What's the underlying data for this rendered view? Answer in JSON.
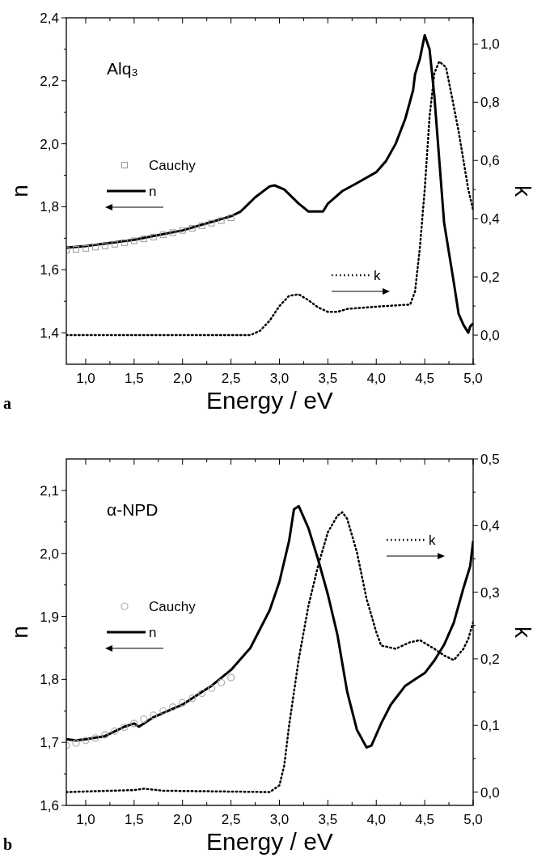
{
  "chart_data": [
    {
      "type": "line",
      "annotations": [
        "Alq₃",
        "a"
      ],
      "xlabel": "Energy / eV",
      "ylabel": "n",
      "y2label": "k",
      "legend": "left",
      "xlim": [
        0.8,
        5.0
      ],
      "xticks": [
        {
          "value": 1.0,
          "label": "1,0"
        },
        {
          "value": 1.5,
          "label": "1,5"
        },
        {
          "value": 2.0,
          "label": "2,0"
        },
        {
          "value": 2.5,
          "label": "2,5"
        },
        {
          "value": 3.0,
          "label": "3,0"
        },
        {
          "value": 3.5,
          "label": "3,5"
        },
        {
          "value": 4.0,
          "label": "4,0"
        },
        {
          "value": 4.5,
          "label": "4,5"
        },
        {
          "value": 5.0,
          "label": "5,0"
        }
      ],
      "ylim": [
        1.3,
        2.4
      ],
      "yticks": [
        {
          "value": 1.4,
          "label": "1,4"
        },
        {
          "value": 1.6,
          "label": "1,6"
        },
        {
          "value": 1.8,
          "label": "1,8"
        },
        {
          "value": 2.0,
          "label": "2,0"
        },
        {
          "value": 2.2,
          "label": "2,2"
        },
        {
          "value": 2.4,
          "label": "2,4"
        }
      ],
      "y2lim": [
        -0.1,
        1.09
      ],
      "y2ticks": [
        {
          "value": 0.0,
          "label": "0,0"
        },
        {
          "value": 0.2,
          "label": "0,2"
        },
        {
          "value": 0.4,
          "label": "0,4"
        },
        {
          "value": 0.6,
          "label": "0,6"
        },
        {
          "value": 0.8,
          "label": "0,8"
        },
        {
          "value": 1.0,
          "label": "1,0"
        }
      ],
      "series": [
        {
          "name": "Cauchy",
          "type": "scatter",
          "marker": "square",
          "color": "#999999",
          "x": [
            0.8,
            0.9,
            1.0,
            1.1,
            1.2,
            1.3,
            1.4,
            1.5,
            1.6,
            1.7,
            1.8,
            1.9,
            2.0,
            2.1,
            2.2,
            2.3,
            2.4,
            2.5
          ],
          "values": [
            1.662,
            1.665,
            1.668,
            1.672,
            1.676,
            1.681,
            1.686,
            1.692,
            1.698,
            1.704,
            1.711,
            1.718,
            1.725,
            1.732,
            1.74,
            1.748,
            1.756,
            1.765
          ]
        },
        {
          "name": "n",
          "type": "line",
          "line_style": "solid",
          "color": "#000000",
          "x": [
            0.8,
            1.0,
            1.5,
            2.0,
            2.5,
            2.6,
            2.75,
            2.9,
            2.95,
            3.05,
            3.2,
            3.3,
            3.45,
            3.5,
            3.65,
            3.8,
            4.0,
            4.1,
            4.2,
            4.3,
            4.38,
            4.4,
            4.45,
            4.5,
            4.55,
            4.6,
            4.65,
            4.7,
            4.8,
            4.85,
            4.9,
            4.95,
            4.97,
            5.0
          ],
          "values": [
            1.67,
            1.675,
            1.695,
            1.725,
            1.77,
            1.785,
            1.83,
            1.865,
            1.868,
            1.855,
            1.81,
            1.785,
            1.785,
            1.81,
            1.85,
            1.875,
            1.91,
            1.945,
            2.0,
            2.08,
            2.17,
            2.22,
            2.27,
            2.345,
            2.3,
            2.15,
            1.95,
            1.75,
            1.56,
            1.46,
            1.425,
            1.4,
            1.42,
            1.43
          ]
        },
        {
          "name": "k",
          "type": "line",
          "line_style": "dotted",
          "axis": "y2",
          "color": "#000000",
          "x": [
            0.8,
            2.7,
            2.8,
            2.9,
            3.0,
            3.1,
            3.2,
            3.3,
            3.4,
            3.5,
            3.6,
            3.7,
            3.9,
            4.1,
            4.35,
            4.4,
            4.45,
            4.5,
            4.55,
            4.6,
            4.65,
            4.72,
            4.78,
            4.85,
            4.95,
            5.0
          ],
          "values": [
            0.0,
            0.0,
            0.015,
            0.05,
            0.1,
            0.135,
            0.14,
            0.12,
            0.095,
            0.08,
            0.08,
            0.09,
            0.095,
            0.1,
            0.105,
            0.15,
            0.3,
            0.5,
            0.75,
            0.9,
            0.94,
            0.92,
            0.82,
            0.7,
            0.5,
            0.43
          ]
        }
      ]
    },
    {
      "type": "line",
      "annotations": [
        "α-NPD",
        "b"
      ],
      "xlabel": "Energy / eV",
      "ylabel": "n",
      "y2label": "k",
      "legend": "left",
      "xlim": [
        0.8,
        5.0
      ],
      "xticks": [
        {
          "value": 1.0,
          "label": "1,0"
        },
        {
          "value": 1.5,
          "label": "1,5"
        },
        {
          "value": 2.0,
          "label": "2,0"
        },
        {
          "value": 2.5,
          "label": "2,5"
        },
        {
          "value": 3.0,
          "label": "3,0"
        },
        {
          "value": 3.5,
          "label": "3,5"
        },
        {
          "value": 4.0,
          "label": "4,0"
        },
        {
          "value": 4.5,
          "label": "4,5"
        },
        {
          "value": 5.0,
          "label": "5,0"
        }
      ],
      "ylim": [
        1.6,
        2.15
      ],
      "yticks": [
        {
          "value": 1.6,
          "label": "1,6"
        },
        {
          "value": 1.7,
          "label": "1,7"
        },
        {
          "value": 1.8,
          "label": "1,8"
        },
        {
          "value": 1.9,
          "label": "1,9"
        },
        {
          "value": 2.0,
          "label": "2,0"
        },
        {
          "value": 2.1,
          "label": "2,1"
        }
      ],
      "y2lim": [
        -0.02,
        0.5
      ],
      "y2ticks": [
        {
          "value": 0.0,
          "label": "0,0"
        },
        {
          "value": 0.1,
          "label": "0,1"
        },
        {
          "value": 0.2,
          "label": "0,2"
        },
        {
          "value": 0.3,
          "label": "0,3"
        },
        {
          "value": 0.4,
          "label": "0,4"
        },
        {
          "value": 0.5,
          "label": "0,5"
        }
      ],
      "series": [
        {
          "name": "Cauchy",
          "type": "scatter",
          "marker": "circle",
          "color": "#aaaaaa",
          "x": [
            0.8,
            0.9,
            1.0,
            1.1,
            1.2,
            1.3,
            1.4,
            1.5,
            1.6,
            1.7,
            1.8,
            1.9,
            2.0,
            2.1,
            2.2,
            2.3,
            2.4,
            2.5
          ],
          "values": [
            1.695,
            1.699,
            1.703,
            1.707,
            1.712,
            1.718,
            1.724,
            1.73,
            1.737,
            1.743,
            1.75,
            1.756,
            1.763,
            1.77,
            1.778,
            1.786,
            1.795,
            1.803
          ]
        },
        {
          "name": "n",
          "type": "line",
          "line_style": "solid",
          "color": "#000000",
          "x": [
            0.8,
            0.9,
            1.0,
            1.2,
            1.4,
            1.5,
            1.55,
            1.7,
            2.0,
            2.3,
            2.5,
            2.7,
            2.9,
            3.0,
            3.1,
            3.15,
            3.2,
            3.3,
            3.4,
            3.5,
            3.6,
            3.7,
            3.8,
            3.9,
            3.95,
            4.05,
            4.15,
            4.3,
            4.4,
            4.5,
            4.6,
            4.7,
            4.8,
            4.9,
            4.97,
            5.0
          ],
          "values": [
            1.705,
            1.703,
            1.705,
            1.71,
            1.725,
            1.73,
            1.725,
            1.74,
            1.76,
            1.79,
            1.815,
            1.85,
            1.91,
            1.955,
            2.02,
            2.07,
            2.075,
            2.04,
            1.99,
            1.935,
            1.87,
            1.78,
            1.72,
            1.692,
            1.695,
            1.73,
            1.76,
            1.79,
            1.8,
            1.81,
            1.83,
            1.855,
            1.89,
            1.945,
            1.98,
            2.02
          ]
        },
        {
          "name": "k",
          "type": "line",
          "line_style": "dotted",
          "axis": "y2",
          "color": "#000000",
          "x": [
            0.8,
            1.5,
            1.6,
            1.8,
            2.9,
            3.0,
            3.05,
            3.1,
            3.2,
            3.3,
            3.4,
            3.5,
            3.6,
            3.65,
            3.7,
            3.8,
            3.9,
            4.0,
            4.05,
            4.2,
            4.35,
            4.45,
            4.6,
            4.7,
            4.8,
            4.9,
            4.95,
            5.0
          ],
          "values": [
            0.0,
            0.003,
            0.005,
            0.002,
            0.0,
            0.01,
            0.04,
            0.1,
            0.2,
            0.28,
            0.34,
            0.39,
            0.415,
            0.42,
            0.41,
            0.36,
            0.29,
            0.24,
            0.22,
            0.215,
            0.225,
            0.228,
            0.215,
            0.205,
            0.198,
            0.215,
            0.23,
            0.255
          ]
        }
      ]
    }
  ]
}
